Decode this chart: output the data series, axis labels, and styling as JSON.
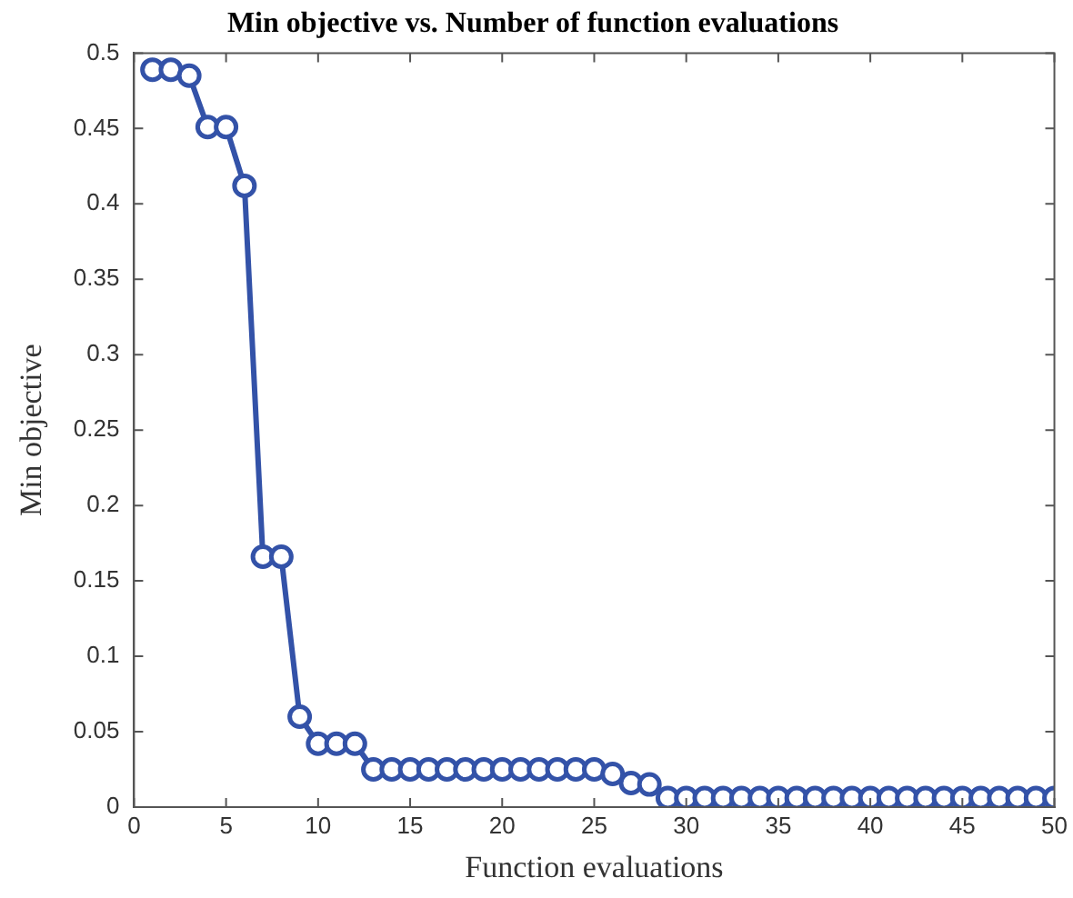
{
  "chart_data": {
    "type": "line",
    "title": "Min objective vs. Number of function evaluations",
    "xlabel": "Function evaluations",
    "ylabel": "Min objective",
    "x": [
      1,
      2,
      3,
      4,
      5,
      6,
      7,
      8,
      9,
      10,
      11,
      12,
      13,
      14,
      15,
      16,
      17,
      18,
      19,
      20,
      21,
      22,
      23,
      24,
      25,
      26,
      27,
      28,
      29,
      30,
      31,
      32,
      33,
      34,
      35,
      36,
      37,
      38,
      39,
      40,
      41,
      42,
      43,
      44,
      45,
      46,
      47,
      48,
      49,
      50
    ],
    "series": [
      {
        "color": "#3352a8",
        "values": [
          0.489,
          0.489,
          0.485,
          0.451,
          0.451,
          0.412,
          0.166,
          0.166,
          0.06,
          0.042,
          0.042,
          0.042,
          0.025,
          0.025,
          0.025,
          0.025,
          0.025,
          0.025,
          0.025,
          0.025,
          0.025,
          0.025,
          0.025,
          0.025,
          0.025,
          0.022,
          0.016,
          0.015,
          0.006,
          0.006,
          0.006,
          0.006,
          0.006,
          0.006,
          0.006,
          0.006,
          0.006,
          0.006,
          0.006,
          0.006,
          0.006,
          0.006,
          0.006,
          0.006,
          0.006,
          0.006,
          0.006,
          0.006,
          0.006,
          0.006
        ]
      }
    ],
    "xlim": [
      0,
      50
    ],
    "xticks": [
      0,
      5,
      10,
      15,
      20,
      25,
      30,
      35,
      40,
      45,
      50
    ],
    "ylim": [
      0,
      0.5
    ],
    "yticks": [
      0,
      0.05,
      0.1,
      0.15,
      0.2,
      0.25,
      0.3,
      0.35,
      0.4,
      0.45,
      0.5
    ],
    "grid": false,
    "legend": false,
    "marker": "circle",
    "line_style": "solid"
  }
}
